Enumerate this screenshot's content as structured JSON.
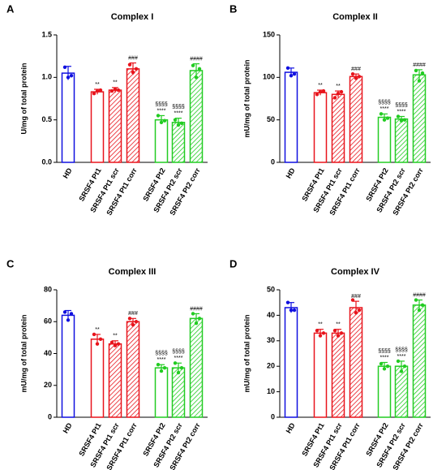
{
  "chart_data": [
    {
      "type": "bar",
      "panel": "A",
      "title": "Complex I",
      "y_label": "U/mg of total protein",
      "categories": [
        "HD",
        "SRSF4 Pt1",
        "SRSF4 Pt1 scr",
        "SRSF4 Pt1 corr",
        "SRSF4 Pt2",
        "SRSF4 Pt2 scr",
        "SRSF4 Pt2 corr"
      ],
      "values": [
        1.05,
        0.83,
        0.85,
        1.1,
        0.5,
        0.47,
        1.08
      ],
      "errors": [
        0.08,
        0.03,
        0.03,
        0.07,
        0.05,
        0.05,
        0.08
      ],
      "points": [
        [
          1.12,
          1.0,
          1.02
        ],
        [
          0.81,
          0.84,
          0.85
        ],
        [
          0.84,
          0.86,
          0.85
        ],
        [
          1.15,
          1.06,
          1.1
        ],
        [
          0.55,
          0.47,
          0.49
        ],
        [
          0.5,
          0.44,
          0.46
        ],
        [
          1.14,
          1.0,
          1.1
        ]
      ],
      "annotations": [
        [],
        [
          "**"
        ],
        [
          "**"
        ],
        [
          "###"
        ],
        [
          "§§§§",
          "****"
        ],
        [
          "§§§§",
          "****"
        ],
        [
          "####"
        ]
      ],
      "colors": [
        "#1010e0",
        "#e8141c",
        "#e8141c",
        "#e8141c",
        "#22cc22",
        "#22cc22",
        "#22cc22"
      ],
      "patterns": [
        "open",
        "open",
        "hatch",
        "hatch",
        "open",
        "hatch",
        "hatch"
      ],
      "ylim": [
        0,
        1.5
      ],
      "yticks": [
        {
          "value": 0,
          "label": "0.0"
        },
        0.5,
        {
          "value": 1,
          "label": "1.0"
        },
        1.5
      ]
    },
    {
      "type": "bar",
      "panel": "B",
      "title": "Complex II",
      "y_label": "mU/mg of total protein",
      "categories": [
        "HD",
        "SRSF4 Pt1",
        "SRSF4 Pt1 scr",
        "SRSF4 Pt1 corr",
        "SRSF4 Pt2",
        "SRSF4 Pt2 scr",
        "SRSF4 Pt2 corr"
      ],
      "values": [
        106,
        82,
        80,
        101,
        53,
        51,
        103
      ],
      "errors": [
        5,
        3,
        4,
        3,
        4,
        3,
        6
      ],
      "points": [
        [
          111,
          102,
          104
        ],
        [
          80,
          83,
          84
        ],
        [
          76,
          81,
          83
        ],
        [
          104,
          99,
          101
        ],
        [
          57,
          50,
          52
        ],
        [
          54,
          49,
          50
        ],
        [
          108,
          96,
          105
        ]
      ],
      "annotations": [
        [],
        [
          "**"
        ],
        [
          "**"
        ],
        [
          "###"
        ],
        [
          "§§§§",
          "****"
        ],
        [
          "§§§§",
          "****"
        ],
        [
          "####"
        ]
      ],
      "colors": [
        "#1010e0",
        "#e8141c",
        "#e8141c",
        "#e8141c",
        "#22cc22",
        "#22cc22",
        "#22cc22"
      ],
      "patterns": [
        "open",
        "open",
        "hatch",
        "hatch",
        "open",
        "hatch",
        "hatch"
      ],
      "ylim": [
        0,
        150
      ],
      "yticks": [
        0,
        50,
        100,
        150
      ]
    },
    {
      "type": "bar",
      "panel": "C",
      "title": "Complex III",
      "y_label": "mU/mg of total protein",
      "categories": [
        "HD",
        "SRSF4 Pt1",
        "SRSF4 Pt1 scr",
        "SRSF4 Pt1 corr",
        "SRSF4 Pt2",
        "SRSF4 Pt2 scr",
        "SRSF4 Pt2 corr"
      ],
      "values": [
        64,
        49,
        46,
        60,
        31,
        31,
        62
      ],
      "errors": [
        3,
        3,
        2,
        2,
        2,
        3,
        3
      ],
      "points": [
        [
          66,
          61,
          65
        ],
        [
          52,
          46,
          49
        ],
        [
          47,
          45,
          46
        ],
        [
          62,
          58,
          60
        ],
        [
          33,
          29,
          31
        ],
        [
          34,
          28,
          31
        ],
        [
          65,
          59,
          62
        ]
      ],
      "annotations": [
        [],
        [
          "**"
        ],
        [
          "**"
        ],
        [
          "###"
        ],
        [
          "§§§§",
          "****"
        ],
        [
          "§§§§",
          "****"
        ],
        [
          "####"
        ]
      ],
      "colors": [
        "#1010e0",
        "#e8141c",
        "#e8141c",
        "#e8141c",
        "#22cc22",
        "#22cc22",
        "#22cc22"
      ],
      "patterns": [
        "open",
        "open",
        "hatch",
        "hatch",
        "open",
        "hatch",
        "hatch"
      ],
      "ylim": [
        0,
        80
      ],
      "yticks": [
        0,
        20,
        40,
        60,
        80
      ]
    },
    {
      "type": "bar",
      "panel": "D",
      "title": "Complex IV",
      "y_label": "mU/mg of total protein",
      "categories": [
        "HD",
        "SRSF4 Pt1",
        "SRSF4 Pt1 scr",
        "SRSF4 Pt1 corr",
        "SRSF4 Pt2",
        "SRSF4 Pt2 scr",
        "SRSF4 Pt2 corr"
      ],
      "values": [
        43,
        33,
        33,
        43,
        20,
        20,
        44
      ],
      "errors": [
        2,
        1.5,
        1.5,
        2.5,
        1.5,
        2,
        2
      ],
      "points": [
        [
          45,
          42,
          42
        ],
        [
          34,
          32,
          33
        ],
        [
          34,
          32,
          33
        ],
        [
          46,
          41,
          42
        ],
        [
          21,
          19,
          20
        ],
        [
          22,
          18,
          20
        ],
        [
          46,
          42,
          44
        ]
      ],
      "annotations": [
        [],
        [
          "**"
        ],
        [
          "**"
        ],
        [
          "###"
        ],
        [
          "§§§§",
          "****"
        ],
        [
          "§§§§",
          "****"
        ],
        [
          "####"
        ]
      ],
      "colors": [
        "#1010e0",
        "#e8141c",
        "#e8141c",
        "#e8141c",
        "#22cc22",
        "#22cc22",
        "#22cc22"
      ],
      "patterns": [
        "open",
        "open",
        "hatch",
        "hatch",
        "open",
        "hatch",
        "hatch"
      ],
      "ylim": [
        0,
        50
      ],
      "yticks": [
        0,
        10,
        20,
        30,
        40,
        50
      ]
    }
  ]
}
